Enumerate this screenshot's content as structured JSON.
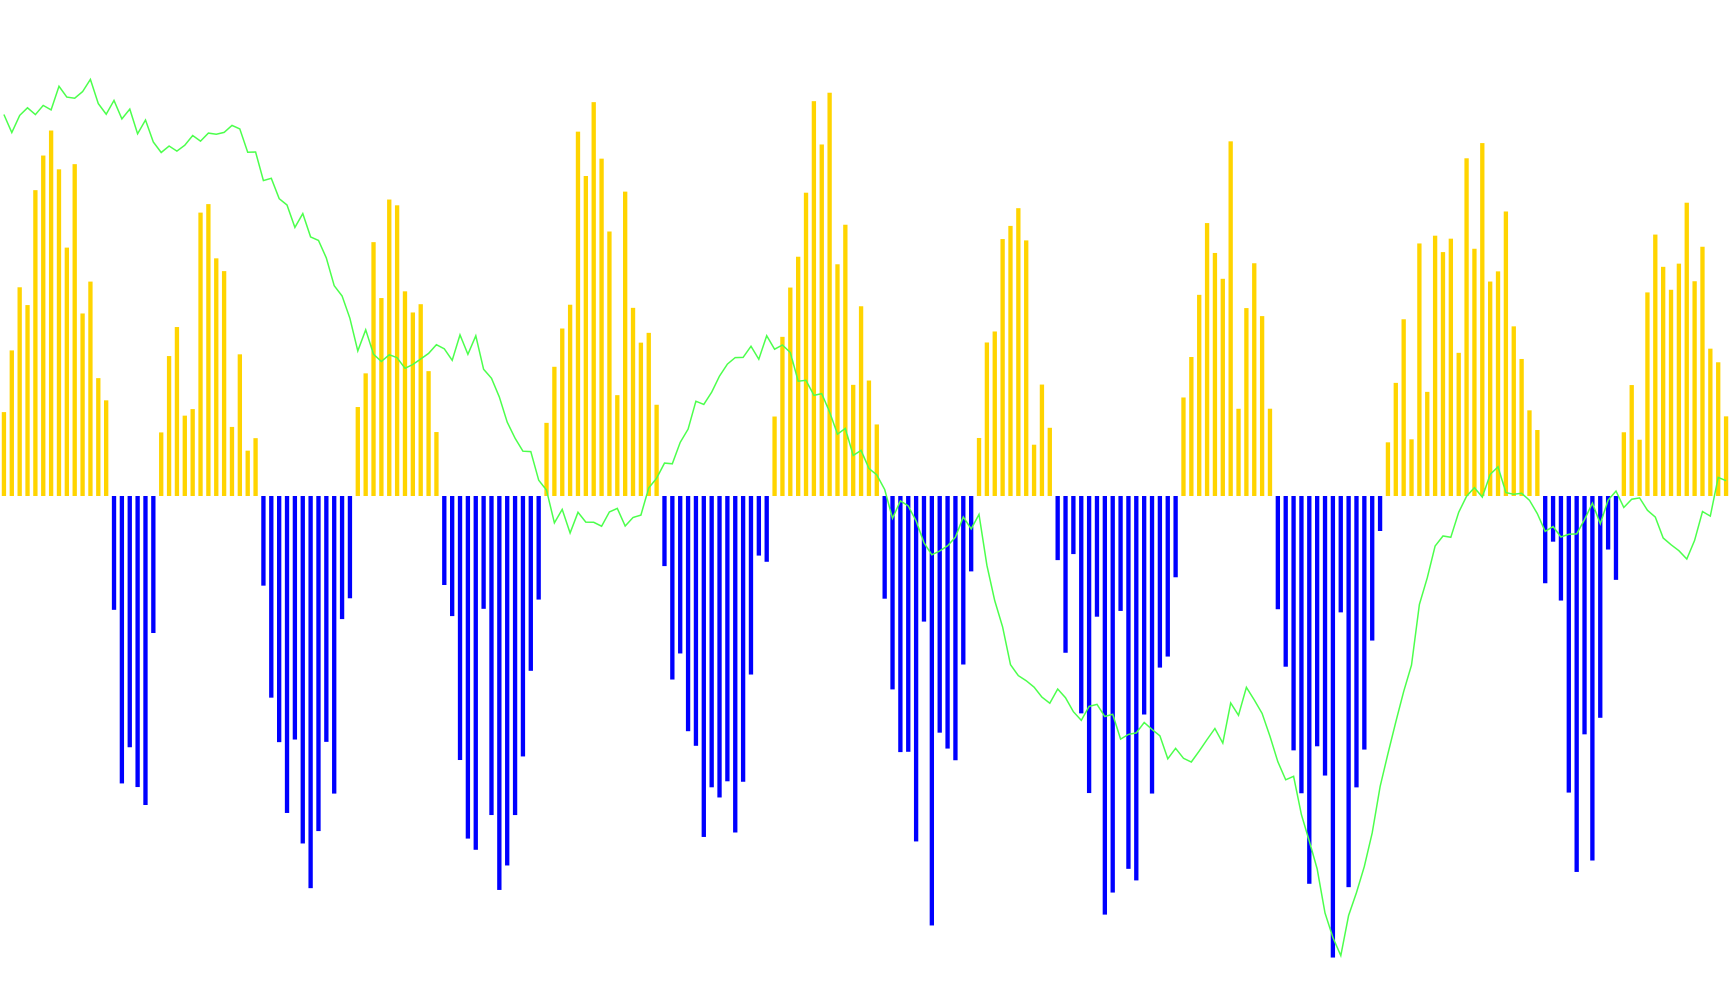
{
  "chart_data": {
    "type": "bar",
    "title": "",
    "xlabel": "",
    "ylabel": "",
    "bar_count": 220,
    "ylim": [
      -1,
      1
    ],
    "grid": false,
    "legend": "none",
    "colors": {
      "positive_bars": "#FFD400",
      "negative_bars": "#0000FF",
      "price_line": "#4CFF4C",
      "background": "#FFFFFF"
    },
    "segments": [
      {
        "start": 0,
        "end": 14,
        "sign": 1,
        "peak": 0.9
      },
      {
        "start": 14,
        "end": 20,
        "sign": -1,
        "peak": 0.85
      },
      {
        "start": 20,
        "end": 33,
        "sign": 1,
        "peak": 0.75
      },
      {
        "start": 33,
        "end": 45,
        "sign": -1,
        "peak": 0.95
      },
      {
        "start": 45,
        "end": 56,
        "sign": 1,
        "peak": 0.8
      },
      {
        "start": 56,
        "end": 69,
        "sign": -1,
        "peak": 0.98
      },
      {
        "start": 69,
        "end": 84,
        "sign": 1,
        "peak": 0.98
      },
      {
        "start": 84,
        "end": 98,
        "sign": -1,
        "peak": 0.9
      },
      {
        "start": 98,
        "end": 112,
        "sign": 1,
        "peak": 0.95
      },
      {
        "start": 112,
        "end": 124,
        "sign": -1,
        "peak": 0.92
      },
      {
        "start": 124,
        "end": 134,
        "sign": 1,
        "peak": 0.7
      },
      {
        "start": 134,
        "end": 150,
        "sign": -1,
        "peak": 0.97
      },
      {
        "start": 150,
        "end": 162,
        "sign": 1,
        "peak": 0.85
      },
      {
        "start": 162,
        "end": 176,
        "sign": -1,
        "peak": 0.95
      },
      {
        "start": 176,
        "end": 196,
        "sign": 1,
        "peak": 0.98
      },
      {
        "start": 196,
        "end": 206,
        "sign": -1,
        "peak": 0.85
      },
      {
        "start": 206,
        "end": 220,
        "sign": 1,
        "peak": 0.75
      }
    ],
    "price_line": {
      "x": [
        0,
        10,
        20,
        30,
        40,
        45,
        52,
        60,
        70,
        80,
        90,
        98,
        105,
        112,
        118,
        124,
        128,
        134,
        140,
        146,
        152,
        158,
        164,
        170,
        176,
        182,
        190,
        198,
        206,
        214,
        219
      ],
      "y": [
        0.82,
        0.92,
        0.78,
        0.8,
        0.55,
        0.35,
        0.3,
        0.35,
        -0.05,
        -0.05,
        0.25,
        0.35,
        0.18,
        0.0,
        -0.1,
        -0.05,
        -0.35,
        -0.42,
        -0.45,
        -0.5,
        -0.55,
        -0.4,
        -0.6,
        -0.95,
        -0.55,
        -0.1,
        0.05,
        -0.08,
        0.0,
        -0.12,
        0.05
      ]
    }
  }
}
